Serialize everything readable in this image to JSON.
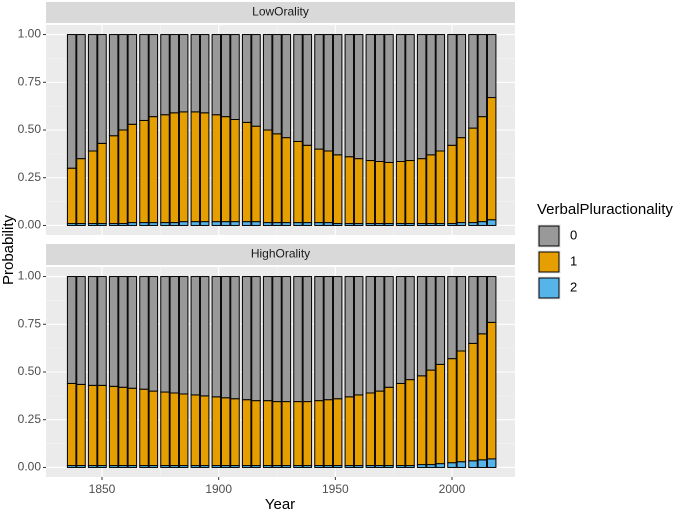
{
  "chart_data": {
    "type": "bar",
    "stacked": true,
    "xlabel": "Year",
    "ylabel": "Probability",
    "legend_title": "VerbalPluractionality",
    "legend_position": "right",
    "x": [
      1837,
      1841,
      1846,
      1850,
      1855,
      1859,
      1863,
      1868,
      1872,
      1877,
      1881,
      1885,
      1890,
      1894,
      1899,
      1903,
      1907,
      1912,
      1916,
      1921,
      1925,
      1929,
      1934,
      1938,
      1943,
      1947,
      1951,
      1956,
      1960,
      1965,
      1969,
      1973,
      1978,
      1982,
      1987,
      1991,
      1995,
      2000,
      2004,
      2009,
      2013,
      2017
    ],
    "xlim": [
      1826,
      2027
    ],
    "xticks": [
      1850,
      1900,
      1950,
      2000
    ],
    "ylim": [
      -0.05,
      1.05
    ],
    "yticks": [
      {
        "value": 0,
        "label": "0.00"
      },
      {
        "value": 0.25,
        "label": "0.25"
      },
      {
        "value": 0.5,
        "label": "0.50"
      },
      {
        "value": 0.75,
        "label": "0.75"
      },
      {
        "value": 1,
        "label": "1.00"
      }
    ],
    "grid": true,
    "series_meta": [
      {
        "name": "0",
        "color": "#999999"
      },
      {
        "name": "1",
        "color": "#E69F00"
      },
      {
        "name": "2",
        "color": "#56B4E9"
      }
    ],
    "facets": [
      {
        "title": "LowOrality",
        "series": [
          {
            "name": "0",
            "color": "#999999",
            "values": [
              0.7,
              0.65,
              0.61,
              0.57,
              0.53,
              0.5,
              0.47,
              0.45,
              0.43,
              0.42,
              0.41,
              0.405,
              0.405,
              0.41,
              0.42,
              0.43,
              0.445,
              0.46,
              0.48,
              0.5,
              0.52,
              0.54,
              0.56,
              0.58,
              0.6,
              0.61,
              0.63,
              0.64,
              0.65,
              0.66,
              0.665,
              0.67,
              0.665,
              0.66,
              0.65,
              0.63,
              0.61,
              0.58,
              0.54,
              0.49,
              0.43,
              0.33
            ]
          },
          {
            "name": "1",
            "color": "#E69F00",
            "values": [
              0.29,
              0.34,
              0.38,
              0.42,
              0.46,
              0.49,
              0.515,
              0.535,
              0.555,
              0.565,
              0.575,
              0.575,
              0.575,
              0.57,
              0.56,
              0.55,
              0.535,
              0.52,
              0.5,
              0.485,
              0.465,
              0.445,
              0.425,
              0.405,
              0.385,
              0.375,
              0.36,
              0.35,
              0.34,
              0.33,
              0.325,
              0.32,
              0.325,
              0.33,
              0.34,
              0.36,
              0.38,
              0.41,
              0.445,
              0.495,
              0.55,
              0.64
            ]
          },
          {
            "name": "2",
            "color": "#56B4E9",
            "values": [
              0.01,
              0.01,
              0.01,
              0.01,
              0.01,
              0.01,
              0.015,
              0.015,
              0.015,
              0.015,
              0.015,
              0.02,
              0.02,
              0.02,
              0.02,
              0.02,
              0.02,
              0.02,
              0.02,
              0.015,
              0.015,
              0.015,
              0.015,
              0.015,
              0.015,
              0.015,
              0.01,
              0.01,
              0.01,
              0.01,
              0.01,
              0.01,
              0.01,
              0.01,
              0.01,
              0.01,
              0.01,
              0.01,
              0.015,
              0.015,
              0.02,
              0.03
            ]
          }
        ]
      },
      {
        "title": "HighOrality",
        "series": [
          {
            "name": "0",
            "color": "#999999",
            "values": [
              0.56,
              0.565,
              0.57,
              0.57,
              0.575,
              0.58,
              0.585,
              0.59,
              0.6,
              0.605,
              0.61,
              0.615,
              0.62,
              0.625,
              0.63,
              0.635,
              0.64,
              0.645,
              0.65,
              0.65,
              0.655,
              0.655,
              0.655,
              0.655,
              0.65,
              0.645,
              0.64,
              0.63,
              0.62,
              0.61,
              0.6,
              0.58,
              0.56,
              0.54,
              0.52,
              0.49,
              0.46,
              0.43,
              0.39,
              0.35,
              0.3,
              0.24
            ]
          },
          {
            "name": "1",
            "color": "#E69F00",
            "values": [
              0.43,
              0.425,
              0.42,
              0.42,
              0.415,
              0.41,
              0.405,
              0.4,
              0.39,
              0.385,
              0.38,
              0.375,
              0.37,
              0.365,
              0.36,
              0.355,
              0.35,
              0.345,
              0.34,
              0.34,
              0.335,
              0.335,
              0.335,
              0.335,
              0.34,
              0.345,
              0.35,
              0.36,
              0.37,
              0.38,
              0.39,
              0.41,
              0.43,
              0.45,
              0.465,
              0.495,
              0.52,
              0.545,
              0.58,
              0.615,
              0.66,
              0.715
            ]
          },
          {
            "name": "2",
            "color": "#56B4E9",
            "values": [
              0.01,
              0.01,
              0.01,
              0.01,
              0.01,
              0.01,
              0.01,
              0.01,
              0.01,
              0.01,
              0.01,
              0.01,
              0.01,
              0.01,
              0.01,
              0.01,
              0.01,
              0.01,
              0.01,
              0.01,
              0.01,
              0.01,
              0.01,
              0.01,
              0.01,
              0.01,
              0.01,
              0.01,
              0.01,
              0.01,
              0.01,
              0.01,
              0.01,
              0.01,
              0.015,
              0.015,
              0.02,
              0.025,
              0.03,
              0.035,
              0.04,
              0.045
            ]
          }
        ]
      }
    ]
  }
}
